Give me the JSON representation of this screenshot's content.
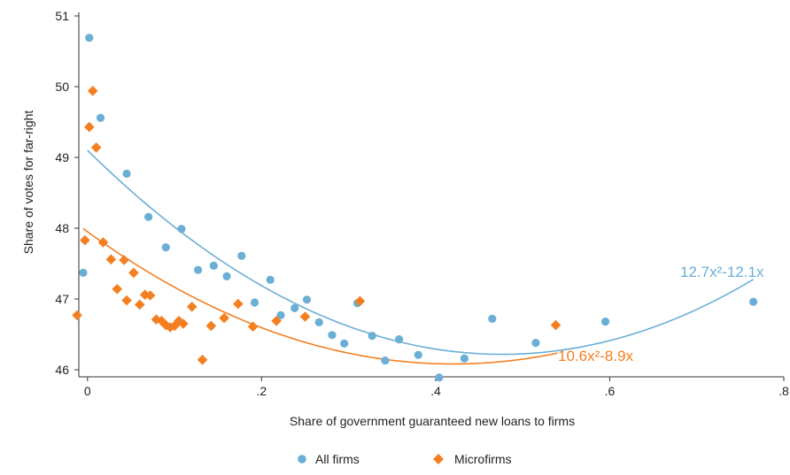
{
  "chart_data": {
    "type": "scatter",
    "xlabel": "Share of government guaranteed new loans to firms",
    "ylabel": "Share of votes for far-right",
    "xlim": [
      -0.01,
      0.8
    ],
    "ylim": [
      45.9,
      51.05
    ],
    "x_ticks": [
      0,
      0.2,
      0.4,
      0.6,
      0.8
    ],
    "x_tick_labels": [
      "0",
      ".2",
      ".4",
      ".6",
      ".8"
    ],
    "y_ticks": [
      46,
      47,
      48,
      49,
      50,
      51
    ],
    "y_tick_labels": [
      "46",
      "47",
      "48",
      "49",
      "50",
      "51"
    ],
    "grid": false,
    "legend_position": "bottom-center",
    "series": [
      {
        "name": "All firms",
        "marker": "circle",
        "color": "#6baed6",
        "points": [
          [
            -0.005,
            47.37
          ],
          [
            0.002,
            50.69
          ],
          [
            0.015,
            49.56
          ],
          [
            0.045,
            48.77
          ],
          [
            0.07,
            48.16
          ],
          [
            0.09,
            47.73
          ],
          [
            0.108,
            47.99
          ],
          [
            0.127,
            47.41
          ],
          [
            0.145,
            47.47
          ],
          [
            0.16,
            47.32
          ],
          [
            0.177,
            47.61
          ],
          [
            0.192,
            46.95
          ],
          [
            0.21,
            47.27
          ],
          [
            0.222,
            46.77
          ],
          [
            0.238,
            46.87
          ],
          [
            0.252,
            46.99
          ],
          [
            0.266,
            46.67
          ],
          [
            0.281,
            46.49
          ],
          [
            0.295,
            46.37
          ],
          [
            0.31,
            46.94
          ],
          [
            0.327,
            46.48
          ],
          [
            0.342,
            46.13
          ],
          [
            0.358,
            46.43
          ],
          [
            0.38,
            46.21
          ],
          [
            0.404,
            45.89
          ],
          [
            0.433,
            46.16
          ],
          [
            0.465,
            46.72
          ],
          [
            0.515,
            46.38
          ],
          [
            0.595,
            46.68
          ],
          [
            0.765,
            46.96
          ]
        ],
        "fit": {
          "label": "12.7x²-12.1x",
          "equation": "12.7x^2-12.1x",
          "coefficients": [
            49.1,
            -12.1,
            12.7
          ],
          "x_range": [
            0,
            0.765
          ]
        }
      },
      {
        "name": "Microfirms",
        "marker": "diamond",
        "color": "#f47f20",
        "points": [
          [
            -0.012,
            46.77
          ],
          [
            -0.003,
            47.83
          ],
          [
            0.002,
            49.43
          ],
          [
            0.006,
            49.94
          ],
          [
            0.01,
            49.14
          ],
          [
            0.018,
            47.8
          ],
          [
            0.027,
            47.56
          ],
          [
            0.034,
            47.14
          ],
          [
            0.042,
            47.55
          ],
          [
            0.045,
            46.98
          ],
          [
            0.053,
            47.37
          ],
          [
            0.06,
            46.92
          ],
          [
            0.066,
            47.06
          ],
          [
            0.072,
            47.05
          ],
          [
            0.079,
            46.71
          ],
          [
            0.085,
            46.69
          ],
          [
            0.09,
            46.63
          ],
          [
            0.095,
            46.6
          ],
          [
            0.1,
            46.62
          ],
          [
            0.105,
            46.69
          ],
          [
            0.11,
            46.65
          ],
          [
            0.12,
            46.89
          ],
          [
            0.132,
            46.14
          ],
          [
            0.142,
            46.62
          ],
          [
            0.157,
            46.73
          ],
          [
            0.173,
            46.93
          ],
          [
            0.19,
            46.61
          ],
          [
            0.217,
            46.69
          ],
          [
            0.25,
            46.75
          ],
          [
            0.313,
            46.97
          ],
          [
            0.538,
            46.63
          ]
        ],
        "fit": {
          "label": "10.6x²-8.9x",
          "equation": "10.6x^2-8.9x",
          "coefficients": [
            47.95,
            -8.9,
            10.6
          ],
          "x_range": [
            -0.005,
            0.54
          ]
        }
      }
    ]
  }
}
